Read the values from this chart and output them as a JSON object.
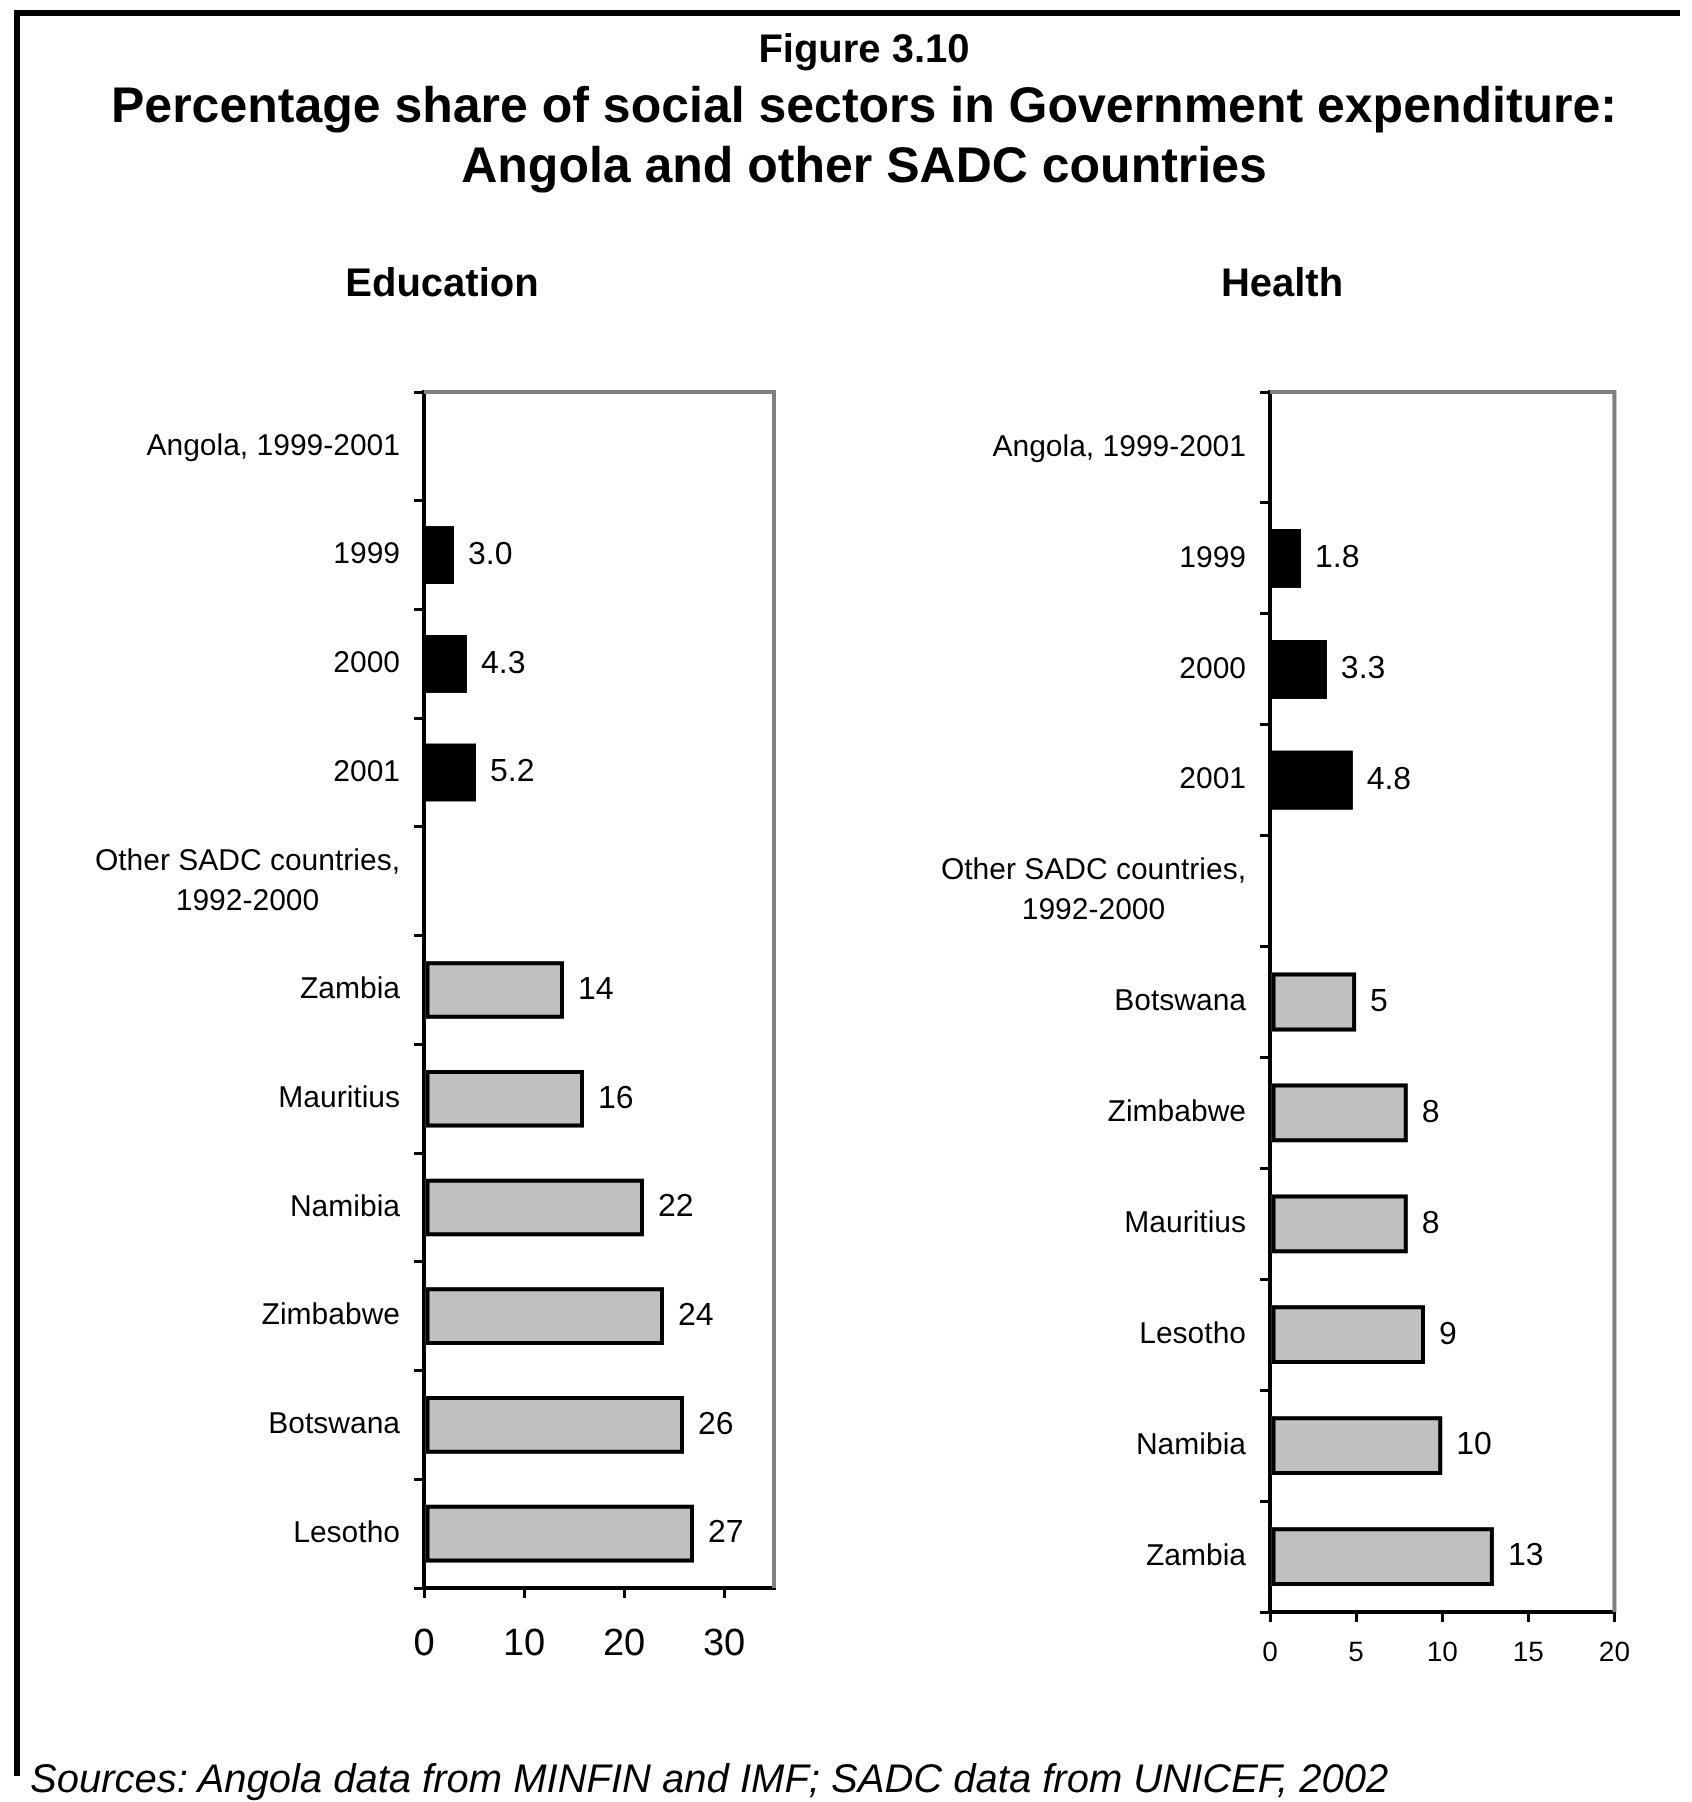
{
  "chart_data": [
    {
      "type": "other",
      "title": "Percentage share of social sectors in Government expenditure: Angola and other SADC countries",
      "annotations": [
        "Figure 3.10"
      ]
    },
    {
      "type": "bar",
      "orientation": "horizontal",
      "title": "Education",
      "categories": [
        "Angola, 1999-2001",
        "1999",
        "2000",
        "2001",
        "Other SADC countries, 1992-2000",
        "Zambia",
        "Mauritius",
        "Namibia",
        "Zimbabwe",
        "Botswana",
        "Lesotho"
      ],
      "values": [
        null,
        3,
        4.3,
        5.2,
        null,
        14,
        16,
        22,
        24,
        26,
        27
      ],
      "colors": [
        null,
        "#000000",
        "#000000",
        "#000000",
        null,
        "#c0c0c0",
        "#c0c0c0",
        "#c0c0c0",
        "#c0c0c0",
        "#c0c0c0",
        "#c0c0c0"
      ],
      "value_labels": [
        null,
        "3.0",
        "4.3",
        "5.2",
        null,
        "14",
        "16",
        "22",
        "24",
        "26",
        "27"
      ],
      "xlim": [
        0,
        35
      ],
      "xticks": [
        0,
        10,
        20,
        30
      ]
    },
    {
      "type": "bar",
      "orientation": "horizontal",
      "title": "Health",
      "categories": [
        "Angola, 1999-2001",
        "1999",
        "2000",
        "2001",
        "Other SADC countries, 1992-2000",
        "Botswana",
        "Zimbabwe",
        "Mauritius",
        "Lesotho",
        "Namibia",
        "Zambia"
      ],
      "values": [
        null,
        1.8,
        3.3,
        4.8,
        null,
        5,
        8,
        8,
        9,
        10,
        13
      ],
      "colors": [
        null,
        "#000000",
        "#000000",
        "#000000",
        null,
        "#c0c0c0",
        "#c0c0c0",
        "#c0c0c0",
        "#c0c0c0",
        "#c0c0c0",
        "#c0c0c0"
      ],
      "value_labels": [
        null,
        "1.8",
        "3.3",
        "4.8",
        null,
        "5",
        "8",
        "8",
        "9",
        "10",
        "13"
      ],
      "xlim": [
        0,
        20
      ],
      "xticks": [
        0,
        5,
        10,
        15,
        20
      ]
    },
    {
      "type": "other",
      "annotations": [
        "Sources: Angola data from MINFIN and IMF; SADC data from UNICEF, 2002"
      ]
    }
  ]
}
